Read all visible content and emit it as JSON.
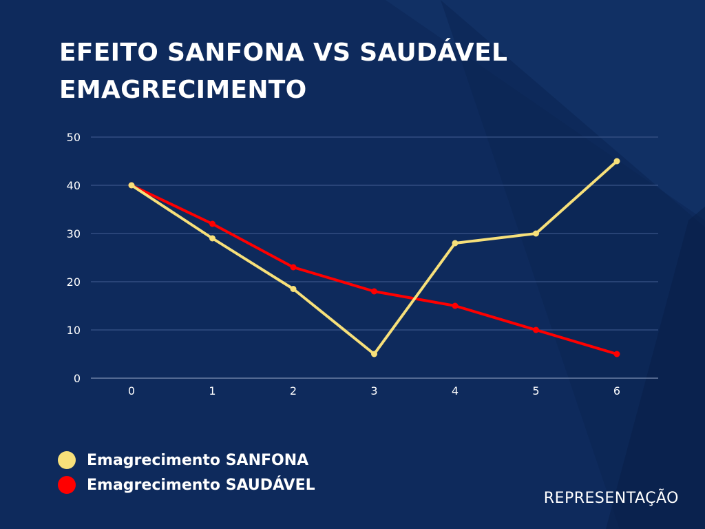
{
  "title_line1": "EFEITO SANFONA VS SAUDÁVEL",
  "title_line2": "EMAGRECIMENTO",
  "footer": "REPRESENTAÇÃO",
  "colors": {
    "background": "#0e2a5c",
    "grid": "#3a5488",
    "sanfona": "#f7e07a",
    "saudavel": "#ff0000",
    "text": "#ffffff"
  },
  "chart_data": {
    "type": "line",
    "x": [
      0,
      1,
      2,
      3,
      4,
      5,
      6
    ],
    "x_tick_labels": [
      "0",
      "1",
      "2",
      "3",
      "4",
      "5",
      "6"
    ],
    "y_ticks": [
      0,
      10,
      20,
      30,
      40,
      50
    ],
    "ylim": [
      0,
      50
    ],
    "grid": true,
    "legend_position": "bottom-left",
    "series": [
      {
        "name": "Emagrecimento SANFONA",
        "values": [
          40,
          29,
          18.5,
          5,
          28,
          30,
          45
        ]
      },
      {
        "name": "Emagrecimento SAUDÁVEL",
        "values": [
          40,
          32,
          23,
          18,
          15,
          10,
          5
        ]
      }
    ]
  }
}
